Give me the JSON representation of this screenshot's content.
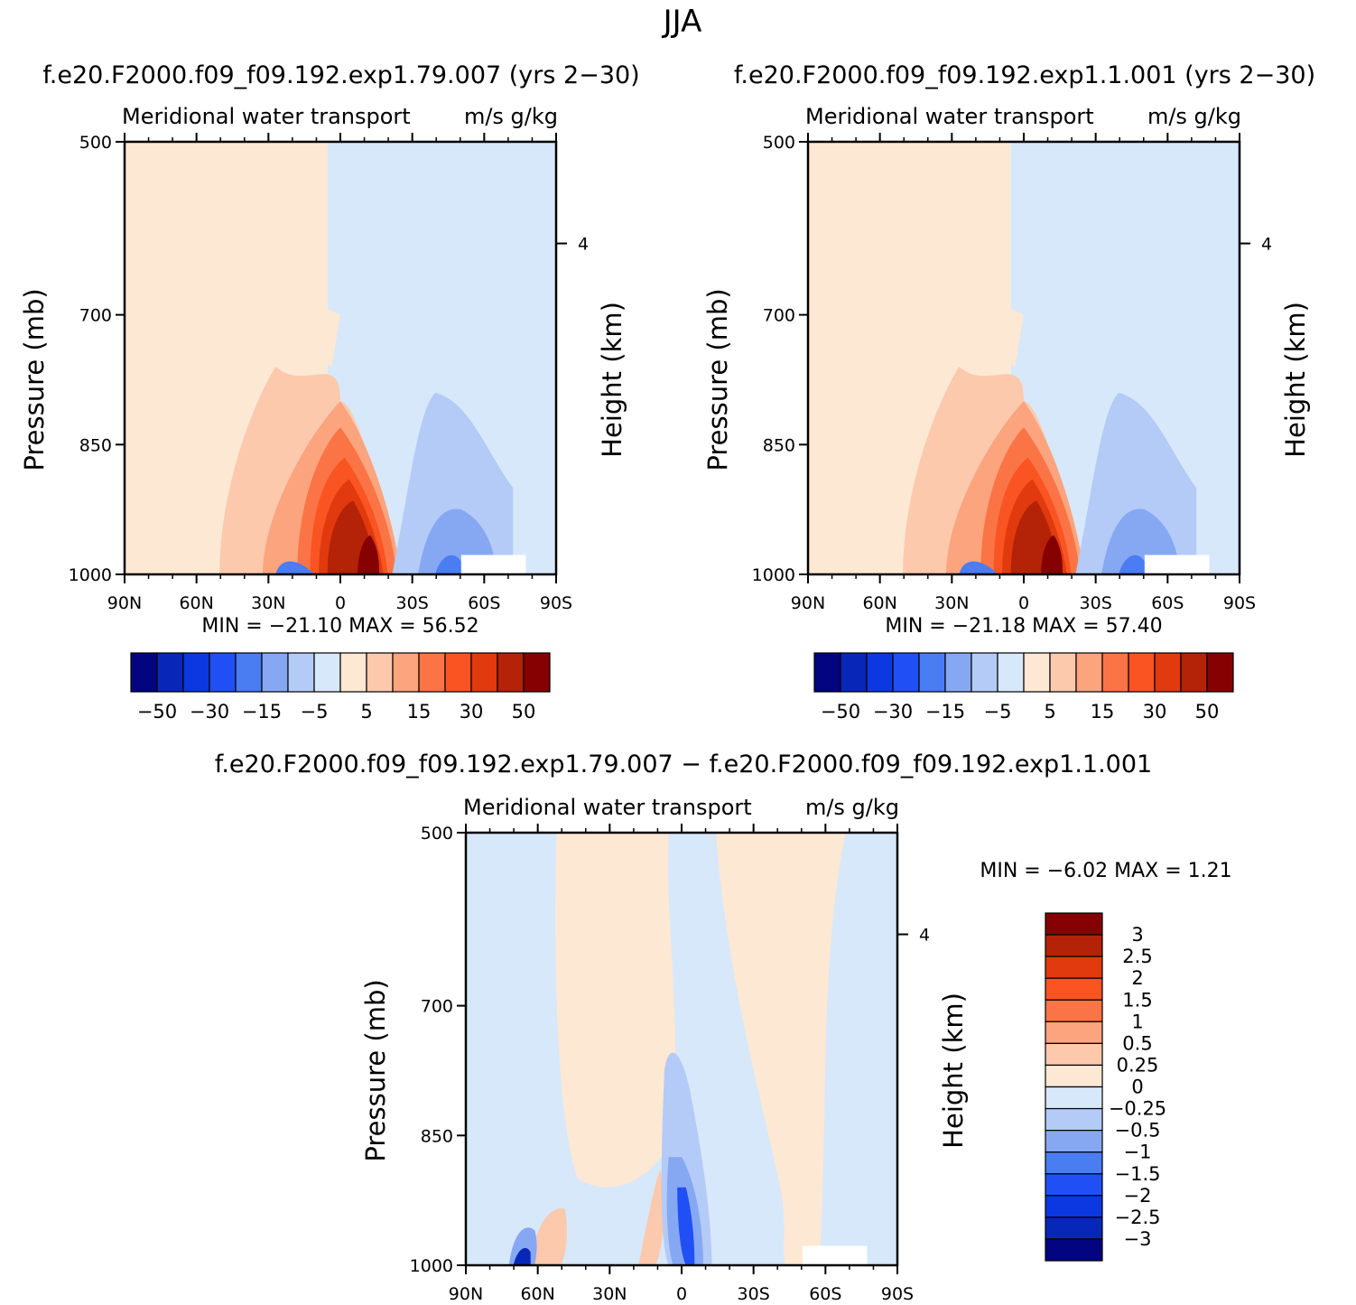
{
  "figure_title": "JJA",
  "chart_data": [
    {
      "type": "heatmap",
      "title": "f.e20.F2000.f09_f09.192.exp1.79.007 (yrs 2−30)",
      "left_label": "Meridional water transport",
      "right_label": "m/s g/kg",
      "ylabel": "Pressure (mb)",
      "ylabel_right": "Height (km)",
      "yticks": [
        "500",
        "700",
        "850",
        "1000"
      ],
      "yticks_right": [
        "4"
      ],
      "xticks": [
        "90N",
        "60N",
        "30N",
        "0",
        "30S",
        "60S",
        "90S"
      ],
      "stats": "MIN =  −21.10   MAX =   56.52",
      "colorbar_labels": [
        "−50",
        "−30",
        "−15",
        "−5",
        "5",
        "15",
        "30",
        "50"
      ],
      "colorbar_colors": [
        "#020480",
        "#0827b9",
        "#0b38e0",
        "#2050f5",
        "#4a7cf2",
        "#86a8f3",
        "#b3cbf6",
        "#d7e8fb",
        "#fde8d4",
        "#fcc9ac",
        "#fba47e",
        "#fb7446",
        "#fa5422",
        "#e03a0e",
        "#b42208",
        "#860202"
      ]
    },
    {
      "type": "heatmap",
      "title": "f.e20.F2000.f09_f09.192.exp1.1.001 (yrs 2−30)",
      "left_label": "Meridional water transport",
      "right_label": "m/s g/kg",
      "ylabel": "Pressure (mb)",
      "ylabel_right": "Height (km)",
      "yticks": [
        "500",
        "700",
        "850",
        "1000"
      ],
      "yticks_right": [
        "4"
      ],
      "xticks": [
        "90N",
        "60N",
        "30N",
        "0",
        "30S",
        "60S",
        "90S"
      ],
      "stats": "MIN =  −21.18   MAX =   57.40",
      "colorbar_labels": [
        "−50",
        "−30",
        "−15",
        "−5",
        "5",
        "15",
        "30",
        "50"
      ],
      "colorbar_colors": [
        "#020480",
        "#0827b9",
        "#0b38e0",
        "#2050f5",
        "#4a7cf2",
        "#86a8f3",
        "#b3cbf6",
        "#d7e8fb",
        "#fde8d4",
        "#fcc9ac",
        "#fba47e",
        "#fb7446",
        "#fa5422",
        "#e03a0e",
        "#b42208",
        "#860202"
      ]
    },
    {
      "type": "heatmap",
      "title": "f.e20.F2000.f09_f09.192.exp1.79.007 − f.e20.F2000.f09_f09.192.exp1.1.001",
      "left_label": "Meridional water transport",
      "right_label": "m/s g/kg",
      "ylabel": "Pressure (mb)",
      "ylabel_right": "Height (km)",
      "yticks": [
        "500",
        "700",
        "850",
        "1000"
      ],
      "yticks_right": [
        "4"
      ],
      "xticks": [
        "90N",
        "60N",
        "30N",
        "0",
        "30S",
        "60S",
        "90S"
      ],
      "stats": "MIN =    −6.02   MAX =    1.21",
      "colorbar_labels": [
        "3",
        "2.5",
        "2",
        "1.5",
        "1",
        "0.5",
        "0.25",
        "0",
        "−0.25",
        "−0.5",
        "−1",
        "−1.5",
        "−2",
        "−2.5",
        "−3"
      ],
      "colorbar_colors": [
        "#860202",
        "#b42208",
        "#e03a0e",
        "#fa5422",
        "#fb7446",
        "#fba47e",
        "#fcc9ac",
        "#fde8d4",
        "#d7e8fb",
        "#b3cbf6",
        "#86a8f3",
        "#4a7cf2",
        "#2050f5",
        "#0b38e0",
        "#0827b9",
        "#020480"
      ]
    }
  ]
}
